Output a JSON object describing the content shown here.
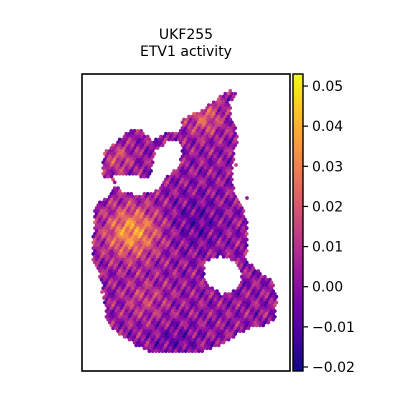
{
  "chart_data": {
    "type": "scatter",
    "title": [
      "UKF255",
      "ETV1 activity"
    ],
    "xlabel": "",
    "ylabel": "",
    "grid": false,
    "legend": "none",
    "colorbar": {
      "colormap": "plasma",
      "vmin": -0.021,
      "vmax": 0.053,
      "ticks": [
        0.05,
        0.04,
        0.03,
        0.02,
        0.01,
        0.0,
        -0.01,
        -0.02
      ],
      "tick_labels": [
        "0.05",
        "0.04",
        "0.03",
        "0.02",
        "0.01",
        "0.00",
        "−0.01",
        "−0.02"
      ]
    },
    "colors": {
      "cmap_stops": [
        "#0d0887",
        "#46039f",
        "#7201a8",
        "#9c179e",
        "#bd3786",
        "#d8576b",
        "#ed7953",
        "#fb9f3a",
        "#fdca26",
        "#f0f921"
      ]
    }
  }
}
